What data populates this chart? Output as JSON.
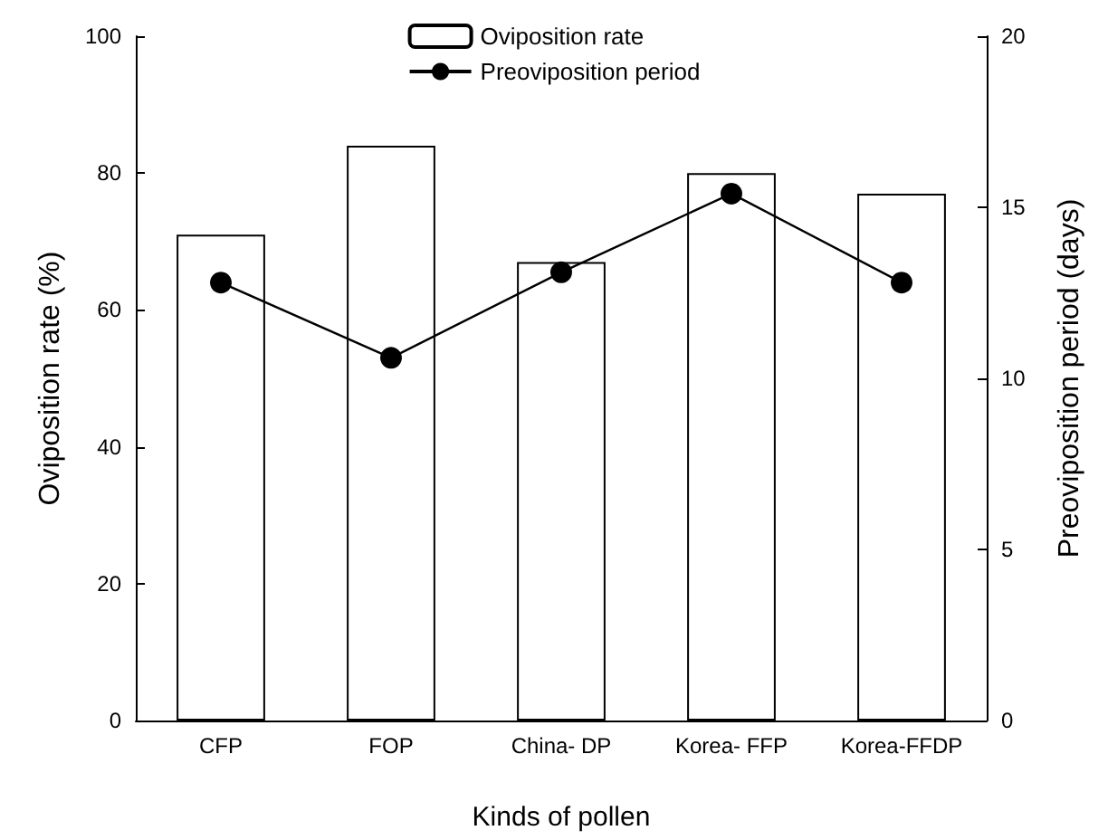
{
  "chart_data": {
    "type": "bar",
    "xlabel": "Kinds of pollen",
    "ylabel": "Oviposition rate (%)",
    "y2label": "Preoviposition period (days)",
    "categories": [
      "CFP",
      "FOP",
      "China- DP",
      "Korea- FFP",
      "Korea-FFDP"
    ],
    "series": [
      {
        "name": "Oviposition rate",
        "color": "#ffffff",
        "values": [
          71,
          84,
          67,
          80,
          77
        ]
      },
      {
        "name": "Preoviposition period",
        "type": "line",
        "axis": "y2",
        "color": "#000000",
        "values": [
          12.8,
          10.6,
          13.1,
          15.4,
          12.8
        ]
      }
    ],
    "ylim": [
      0,
      100
    ],
    "yticks": [
      0,
      20,
      40,
      60,
      80,
      100
    ],
    "y2lim": [
      0,
      20
    ],
    "y2ticks": [
      0,
      5,
      10,
      15,
      20
    ],
    "legend": "top",
    "marker": "circle",
    "line_style": "solid"
  }
}
